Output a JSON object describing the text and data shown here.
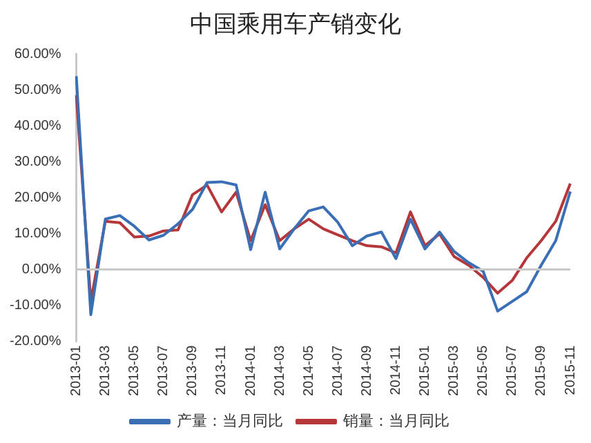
{
  "chart_data": {
    "type": "line",
    "title": "中国乘用车产销变化",
    "categories": [
      "2013-01",
      null,
      "2013-03",
      null,
      "2013-05",
      null,
      "2013-07",
      null,
      "2013-09",
      null,
      "2013-11",
      null,
      "2014-01",
      null,
      "2014-03",
      null,
      "2014-05",
      null,
      "2014-07",
      null,
      "2014-09",
      null,
      "2014-11",
      null,
      "2015-01",
      null,
      "2015-03",
      null,
      "2015-05",
      null,
      "2015-07",
      null,
      "2015-09",
      null,
      "2015-11"
    ],
    "series": [
      {
        "name": "产量：当月同比",
        "color": "#3a6fb5",
        "values": [
          53.8,
          -12.6,
          14,
          15,
          12,
          8.2,
          9.5,
          12.7,
          16.7,
          24.2,
          24.4,
          23.5,
          5.5,
          21.5,
          5.7,
          11.3,
          16.3,
          17.4,
          13.1,
          6.6,
          9.3,
          10.4,
          3,
          14,
          5.7,
          10.4,
          5,
          1.9,
          -0.5,
          -11.6,
          -8.9,
          -6.2,
          1.2,
          8,
          21.7
        ]
      },
      {
        "name": "销量：当月同比",
        "color": "#b5373a",
        "values": [
          48.5,
          -8.9,
          13.4,
          13,
          9,
          9.3,
          10.7,
          11,
          20.8,
          23.5,
          16,
          21.5,
          8,
          18,
          8,
          11.3,
          14,
          11.3,
          9.6,
          8,
          6.6,
          6.3,
          4.6,
          16,
          6.6,
          9.9,
          3.6,
          1.2,
          -2.2,
          -6.6,
          -3.1,
          3.2,
          8,
          13.4,
          23.9
        ]
      }
    ],
    "ylim": [
      -20,
      60
    ],
    "yticks": [
      {
        "value": -20,
        "label": "-20.00%"
      },
      {
        "value": -10,
        "label": "-10.00%"
      },
      {
        "value": 0,
        "label": "0.00%"
      },
      {
        "value": 10,
        "label": "10.00%"
      },
      {
        "value": 20,
        "label": "20.00%"
      },
      {
        "value": 30,
        "label": "30.00%"
      },
      {
        "value": 40,
        "label": "40.00%"
      },
      {
        "value": 50,
        "label": "50.00%"
      },
      {
        "value": 60,
        "label": "60.00%"
      }
    ],
    "ref_lines": [
      {
        "axis": "y",
        "value": 0,
        "color": "#c8c8c8"
      }
    ],
    "grid": false,
    "legend": "bottom",
    "marker": "none",
    "line_style": "solid"
  }
}
